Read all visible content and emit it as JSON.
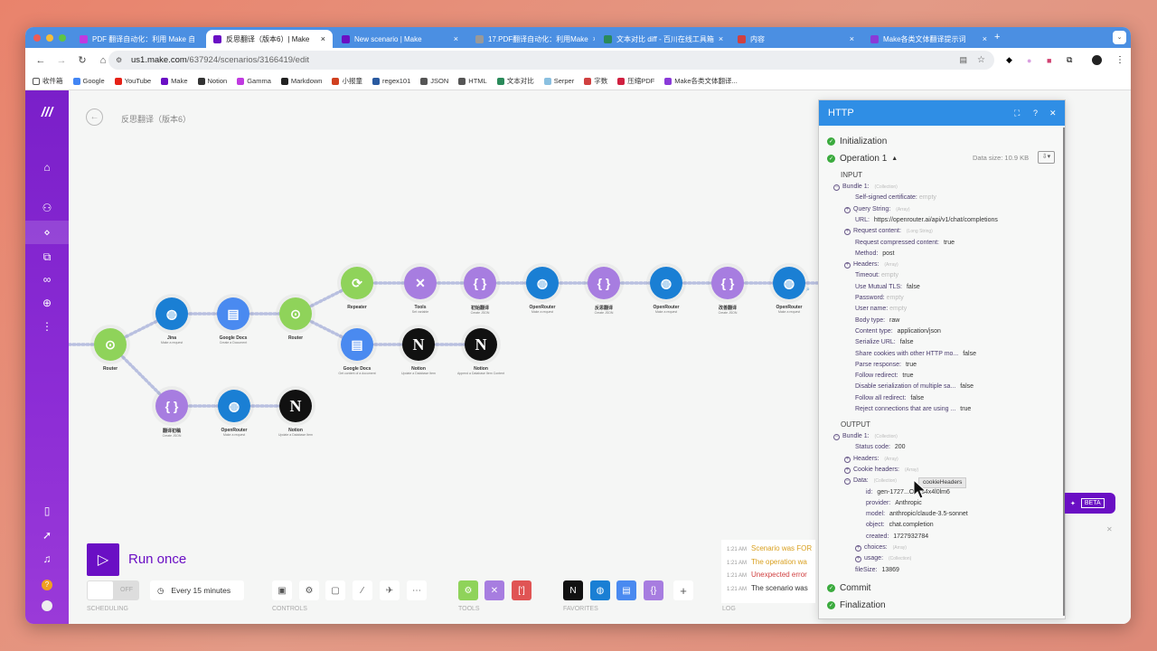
{
  "browser": {
    "tabs": [
      {
        "title": "PDF 翻译自动化：利用 Make 自",
        "color": "#c03ae0"
      },
      {
        "title": "反思翻译（版本6）| Make",
        "color": "#6a0fc4",
        "active": true
      },
      {
        "title": "New scenario | Make",
        "color": "#6a0fc4"
      },
      {
        "title": "17.PDF翻译自动化：利用Make",
        "color": "#999999"
      },
      {
        "title": "文本对比 diff - 百川在线工具箱",
        "color": "#2a8a5a"
      },
      {
        "title": "内容",
        "color": "#d04040"
      },
      {
        "title": "Make各类文体翻译提示词",
        "color": "#8a3ad8"
      }
    ],
    "new_tab": "+",
    "url_host": "us1.make.com",
    "url_path": "/637924/scenarios/3166419/edit",
    "bookmarks": [
      {
        "label": "收件箱",
        "color": "#ffffff"
      },
      {
        "label": "Google",
        "color": "#4285f4"
      },
      {
        "label": "YouTube",
        "color": "#e62117"
      },
      {
        "label": "Make",
        "color": "#6a0fc4"
      },
      {
        "label": "Notion",
        "color": "#333333"
      },
      {
        "label": "Gamma",
        "color": "#c03ae0"
      },
      {
        "label": "Markdown",
        "color": "#222222"
      },
      {
        "label": "小报童",
        "color": "#d04020"
      },
      {
        "label": "regex101",
        "color": "#2a5aa0"
      },
      {
        "label": "JSON",
        "color": "#555555"
      },
      {
        "label": "HTML",
        "color": "#555555"
      },
      {
        "label": "文本对比",
        "color": "#2a8a5a"
      },
      {
        "label": "Serper",
        "color": "#8ac0e0"
      },
      {
        "label": "字数",
        "color": "#d04040"
      },
      {
        "label": "压缩PDF",
        "color": "#d02040"
      },
      {
        "label": "Make各类文体翻译...",
        "color": "#8a3ad8"
      }
    ]
  },
  "scenario": {
    "title": "反思翻译（版本6）"
  },
  "nodes": [
    {
      "label": "Router",
      "sub": "",
      "color": "#8fd35a",
      "icon": "router"
    },
    {
      "label": "Jina",
      "sub": "Make a request",
      "color": "#1a7fd4",
      "icon": "globe"
    },
    {
      "label": "Google Docs",
      "sub": "Create a Document",
      "color": "#4a8af0",
      "icon": "doc"
    },
    {
      "label": "Router",
      "sub": "",
      "color": "#8fd35a",
      "icon": "router"
    },
    {
      "label": "Repeater",
      "sub": "",
      "color": "#8fd35a",
      "icon": "repeat"
    },
    {
      "label": "Tools",
      "sub": "Set variable",
      "color": "#a77de0",
      "icon": "tools"
    },
    {
      "label": "初始翻译",
      "sub": "Create JSON",
      "color": "#a77de0",
      "icon": "json"
    },
    {
      "label": "OpenRouter",
      "sub": "Make a request",
      "color": "#1a7fd4",
      "icon": "globe"
    },
    {
      "label": "反思翻译",
      "sub": "Create JSON",
      "color": "#a77de0",
      "icon": "json"
    },
    {
      "label": "OpenRouter",
      "sub": "Make a request",
      "color": "#1a7fd4",
      "icon": "globe"
    },
    {
      "label": "改善翻译",
      "sub": "Create JSON",
      "color": "#a77de0",
      "icon": "json"
    },
    {
      "label": "OpenRouter",
      "sub": "Make a request",
      "color": "#1a7fd4",
      "icon": "globe"
    },
    {
      "label": "Google Docs",
      "sub": "Get content of a document",
      "color": "#4a8af0",
      "icon": "doc"
    },
    {
      "label": "Notion",
      "sub": "Update a Database Item",
      "color": "#111111",
      "icon": "notion"
    },
    {
      "label": "Notion",
      "sub": "Append a Database Item Content",
      "color": "#111111",
      "icon": "notion"
    },
    {
      "label": "翻译初稿",
      "sub": "Create JSON",
      "color": "#a77de0",
      "icon": "json"
    },
    {
      "label": "OpenRouter",
      "sub": "Make a request",
      "color": "#1a7fd4",
      "icon": "globe"
    },
    {
      "label": "Notion",
      "sub": "Update a Database Item",
      "color": "#111111",
      "icon": "notion"
    }
  ],
  "panel": {
    "title": "HTTP",
    "initialization": "Initialization",
    "operation": "Operation 1",
    "data_size": "Data size: 10.9 KB",
    "input_label": "INPUT",
    "output_label": "OUTPUT",
    "commit": "Commit",
    "finalization": "Finalization",
    "input_rows": [
      {
        "lvl": 0,
        "exp": "-",
        "key": "Bundle 1:",
        "type": "(Collection)"
      },
      {
        "lvl": 1,
        "key": "Self-signed certificate:",
        "empty": "empty"
      },
      {
        "lvl": 1,
        "exp": "+",
        "key": "Query String:",
        "type": "(Array)"
      },
      {
        "lvl": 1,
        "key": "URL:",
        "val": "https://openrouter.ai/api/v1/chat/completions"
      },
      {
        "lvl": 1,
        "exp": "+",
        "key": "Request content:",
        "type": "(Long String)"
      },
      {
        "lvl": 1,
        "key": "Request compressed content:",
        "val": "true"
      },
      {
        "lvl": 1,
        "key": "Method:",
        "val": "post"
      },
      {
        "lvl": 1,
        "exp": "+",
        "key": "Headers:",
        "type": "(Array)"
      },
      {
        "lvl": 1,
        "key": "Timeout:",
        "empty": "empty"
      },
      {
        "lvl": 1,
        "key": "Use Mutual TLS:",
        "val": "false"
      },
      {
        "lvl": 1,
        "key": "Password:",
        "empty": "empty"
      },
      {
        "lvl": 1,
        "key": "User name:",
        "empty": "empty"
      },
      {
        "lvl": 1,
        "key": "Body type:",
        "val": "raw"
      },
      {
        "lvl": 1,
        "key": "Content type:",
        "val": "application/json"
      },
      {
        "lvl": 1,
        "key": "Serialize URL:",
        "val": "false"
      },
      {
        "lvl": 1,
        "key": "Share cookies with other HTTP mo...",
        "val": "false"
      },
      {
        "lvl": 1,
        "key": "Parse response:",
        "val": "true"
      },
      {
        "lvl": 1,
        "key": "Follow redirect:",
        "val": "true"
      },
      {
        "lvl": 1,
        "key": "Disable serialization of multiple sa...",
        "val": "false"
      },
      {
        "lvl": 1,
        "key": "Follow all redirect:",
        "val": "false"
      },
      {
        "lvl": 1,
        "key": "Reject connections that are using ...",
        "val": "true"
      }
    ],
    "output_rows": [
      {
        "lvl": 0,
        "exp": "-",
        "key": "Bundle 1:",
        "type": "(Collection)"
      },
      {
        "lvl": 1,
        "key": "Status code:",
        "val": "200"
      },
      {
        "lvl": 1,
        "exp": "+",
        "key": "Headers:",
        "type": "(Array)"
      },
      {
        "lvl": 1,
        "exp": "+",
        "key": "Cookie headers:",
        "type": "(Array)"
      },
      {
        "lvl": 1,
        "exp": "-",
        "key": "Data:",
        "type": "(Collection)"
      },
      {
        "lvl": 2,
        "key": "id:",
        "val": "gen-1727...O7Fs4x4l0lm6"
      },
      {
        "lvl": 2,
        "key": "provider:",
        "val": "Anthropic"
      },
      {
        "lvl": 2,
        "key": "model:",
        "val": "anthropic/claude-3.5-sonnet"
      },
      {
        "lvl": 2,
        "key": "object:",
        "val": "chat.completion"
      },
      {
        "lvl": 2,
        "key": "created:",
        "val": "1727932784"
      },
      {
        "lvl": 2,
        "exp": "+",
        "key": "choices:",
        "type": "(Array)"
      },
      {
        "lvl": 2,
        "exp": "+",
        "key": "usage:",
        "type": "(Collection)"
      },
      {
        "lvl": 1,
        "key": "fileSize:",
        "val": "13869"
      }
    ],
    "tooltip": "cookieHeaders"
  },
  "bottom": {
    "run_once": "Run once",
    "toggle": "OFF",
    "schedule": "Every 15 minutes",
    "captions": {
      "scheduling": "SCHEDULING",
      "controls": "CONTROLS",
      "tools": "TOOLS",
      "favorites": "FAVORITES",
      "log": "LOG"
    },
    "beta": "BETA",
    "log": [
      {
        "time": "1:21 AM",
        "text": "Scenario was FOR",
        "color": "#d9a020"
      },
      {
        "time": "1:21 AM",
        "text": "The operation wa",
        "color": "#d9a020"
      },
      {
        "time": "1:21 AM",
        "text": "Unexpected error",
        "color": "#d04040"
      },
      {
        "time": "1:21 AM",
        "text": "The scenario was",
        "color": "#333333"
      }
    ]
  }
}
